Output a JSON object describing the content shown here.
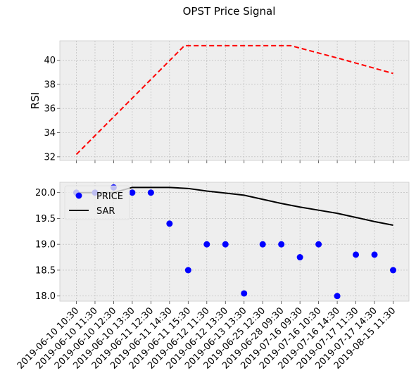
{
  "title": "OPST Price Signal",
  "chart_data": [
    {
      "type": "line",
      "ylabel": "RSI",
      "ylim": [
        31.7,
        41.6
      ],
      "yticks": [
        32,
        34,
        36,
        38,
        40
      ],
      "grid": true,
      "series": [
        {
          "values": [
            32.2,
            41.2,
            41.2,
            41.2,
            41.2,
            41.2,
            41.2,
            41.2,
            41.2,
            41.2,
            41.2,
            41.2,
            41.2,
            41.2,
            41.2,
            41.2,
            41.2,
            41.2
          ],
          "x_index": [
            0,
            6,
            7,
            8,
            9,
            10,
            11,
            12,
            13,
            14,
            15,
            16,
            17,
            17,
            17,
            17,
            17,
            17
          ],
          "color": "#ff0000",
          "style": "dashed"
        }
      ],
      "rsi_points": [
        {
          "x": 0,
          "y": 32.2
        },
        {
          "x": 5.8,
          "y": 41.2
        },
        {
          "x": 11.5,
          "y": 41.2
        },
        {
          "x": 14.2,
          "y": 40.1
        },
        {
          "x": 17,
          "y": 38.9
        }
      ]
    },
    {
      "type": "scatter",
      "categories": [
        "2019-06-10 10:30",
        "2019-06-10 11:30",
        "2019-06-10 12:30",
        "2019-06-10 13:30",
        "2019-06-11 12:30",
        "2019-06-11 14:30",
        "2019-06-11 15:30",
        "2019-06-12 11:30",
        "2019-06-12 13:30",
        "2019-06-13 13:30",
        "2019-06-25 12:30",
        "2019-06-28 09:30",
        "2019-07-16 09:30",
        "2019-07-16 10:30",
        "2019-07-16 14:30",
        "2019-07-17 11:30",
        "2019-07-17 14:30",
        "2019-08-15 11:30"
      ],
      "ylim": [
        17.9,
        20.2
      ],
      "yticks": [
        18.0,
        18.5,
        19.0,
        19.5,
        20.0
      ],
      "ytick_labels": [
        "18.0",
        "18.5",
        "19.0",
        "19.5",
        "20.0"
      ],
      "grid": true,
      "legend": {
        "placement": "upper-left",
        "entries": [
          "PRICE",
          "SAR"
        ]
      },
      "series": [
        {
          "name": "PRICE",
          "marker": "circle",
          "color": "#0000ff",
          "values": [
            20.0,
            20.0,
            20.1,
            20.0,
            20.0,
            19.4,
            18.5,
            19.0,
            19.0,
            18.05,
            19.0,
            19.0,
            18.75,
            19.0,
            18.0,
            18.8,
            18.8,
            18.5
          ]
        },
        {
          "name": "SAR",
          "marker": "line",
          "color": "#000000",
          "values": [
            20.0,
            20.0,
            20.0,
            20.1,
            20.1,
            20.1,
            20.08,
            20.03,
            19.99,
            19.95,
            19.87,
            19.79,
            19.72,
            19.66,
            19.6,
            19.52,
            19.44,
            19.37
          ]
        }
      ]
    }
  ]
}
